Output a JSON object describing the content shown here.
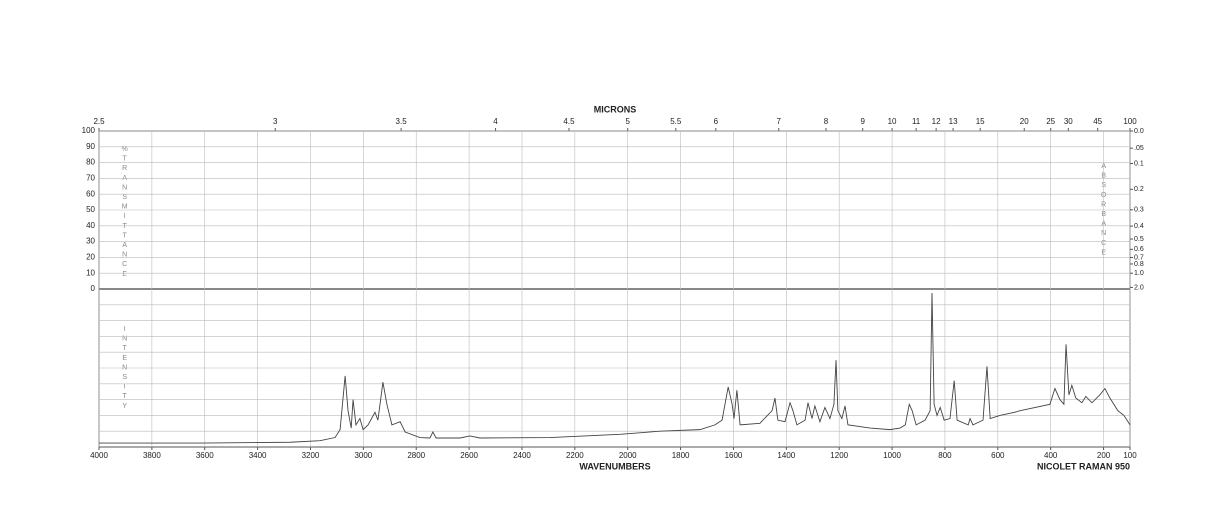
{
  "chart_data": {
    "type": "line",
    "top_axis_label": "MICRONS",
    "xlabel": "WAVENUMBERS",
    "instrument": "NICOLET RAMAN 950",
    "ylabel": "%TRANSMITTANCE",
    "lower_label": "INTENSITY",
    "y2label": "ABSORBANCE",
    "xlim": [
      4000,
      100
    ],
    "xticks": [
      4000,
      3800,
      3600,
      3400,
      3200,
      3000,
      2800,
      2600,
      2400,
      2200,
      2000,
      1800,
      1600,
      1400,
      1200,
      1000,
      800,
      600,
      400,
      200,
      100
    ],
    "micron_ticks": [
      2.5,
      3,
      3.5,
      4,
      4.5,
      5,
      5.5,
      6,
      7,
      8,
      9,
      10,
      11,
      12,
      13,
      15,
      20,
      25,
      30,
      45,
      100
    ],
    "ylim": [
      0,
      100
    ],
    "yticks": [
      0,
      10,
      20,
      30,
      40,
      50,
      60,
      70,
      80,
      90,
      100
    ],
    "y2ticks": [
      {
        "value": 0,
        "label": "0.0"
      },
      {
        "value": 0.05,
        "label": ".05"
      },
      0.1,
      0.2,
      0.3,
      0.4,
      0.5,
      0.6,
      0.7,
      0.8,
      {
        "value": 1,
        "label": "1.0"
      },
      {
        "value": 2,
        "label": "2.0"
      }
    ],
    "intensity_lim": [
      0,
      100
    ],
    "color": "#444444",
    "grid": true,
    "x": [
      4000,
      3618,
      3277,
      3164,
      3107,
      3088,
      3069,
      3058,
      3046,
      3039,
      3028,
      3013,
      3001,
      2982,
      2956,
      2945,
      2926,
      2911,
      2892,
      2861,
      2842,
      2786,
      2748,
      2737,
      2725,
      2634,
      2597,
      2559,
      2294,
      2029,
      1878,
      1727,
      1670,
      1643,
      1620,
      1605,
      1598,
      1587,
      1575,
      1500,
      1454,
      1443,
      1432,
      1405,
      1386,
      1375,
      1360,
      1329,
      1318,
      1303,
      1292,
      1273,
      1254,
      1235,
      1220,
      1212,
      1205,
      1190,
      1178,
      1167,
      1083,
      1008,
      970,
      950,
      935,
      924,
      909,
      875,
      856,
      849,
      841,
      830,
      818,
      803,
      781,
      765,
      754,
      712,
      705,
      694,
      656,
      641,
      629,
      592,
      535,
      516,
      403,
      384,
      365,
      350,
      342,
      331,
      320,
      305,
      282,
      267,
      244,
      214,
      195,
      176,
      146,
      123,
      100
    ],
    "values": [
      2.5,
      2.5,
      3,
      4,
      6,
      11,
      45,
      23,
      12,
      30,
      14,
      18,
      11,
      14,
      22,
      17,
      41,
      27,
      14,
      16,
      9.5,
      6,
      5.7,
      9.5,
      5.7,
      5.7,
      7,
      5.7,
      6,
      8,
      10,
      11,
      14,
      17,
      38,
      27,
      18,
      36,
      14,
      15,
      23,
      31,
      17,
      16,
      28,
      23,
      14,
      17,
      28,
      18,
      26,
      16,
      25,
      18,
      27,
      55,
      23,
      18,
      26,
      14,
      12,
      11,
      12,
      14,
      27,
      23,
      14,
      17,
      23,
      97.5,
      27,
      20,
      25,
      17,
      18,
      42,
      17,
      14,
      18,
      14,
      17,
      51,
      18,
      20,
      22,
      23,
      27,
      37,
      30,
      27,
      65,
      33,
      39,
      31,
      28,
      32,
      28,
      33,
      37,
      31,
      23,
      20,
      14
    ]
  }
}
